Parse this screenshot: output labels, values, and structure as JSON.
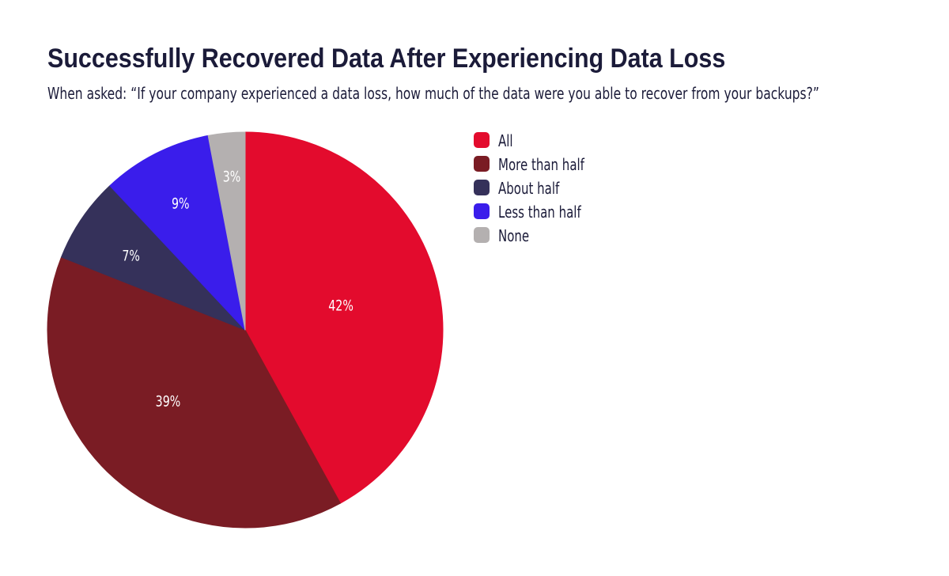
{
  "header": {
    "title": "Successfully Recovered Data After Experiencing Data Loss",
    "subtitle": "When asked: “If your company experienced a data loss, how much of the data were you able to recover from your backups?”"
  },
  "chart_data": {
    "type": "pie",
    "labels": [
      "All",
      "More than half",
      "About half",
      "Less than half",
      "None"
    ],
    "values": [
      42,
      39,
      7,
      9,
      3
    ],
    "slice_labels": [
      "42%",
      "39%",
      "7%",
      "9%",
      "3%"
    ],
    "colors": [
      "#e30b2d",
      "#7a1c24",
      "#35315a",
      "#3a1deb",
      "#b4b0b0"
    ],
    "start_angle": "top",
    "direction": "clockwise",
    "legend_position": "right",
    "slice_label_color": "#ffffff"
  }
}
